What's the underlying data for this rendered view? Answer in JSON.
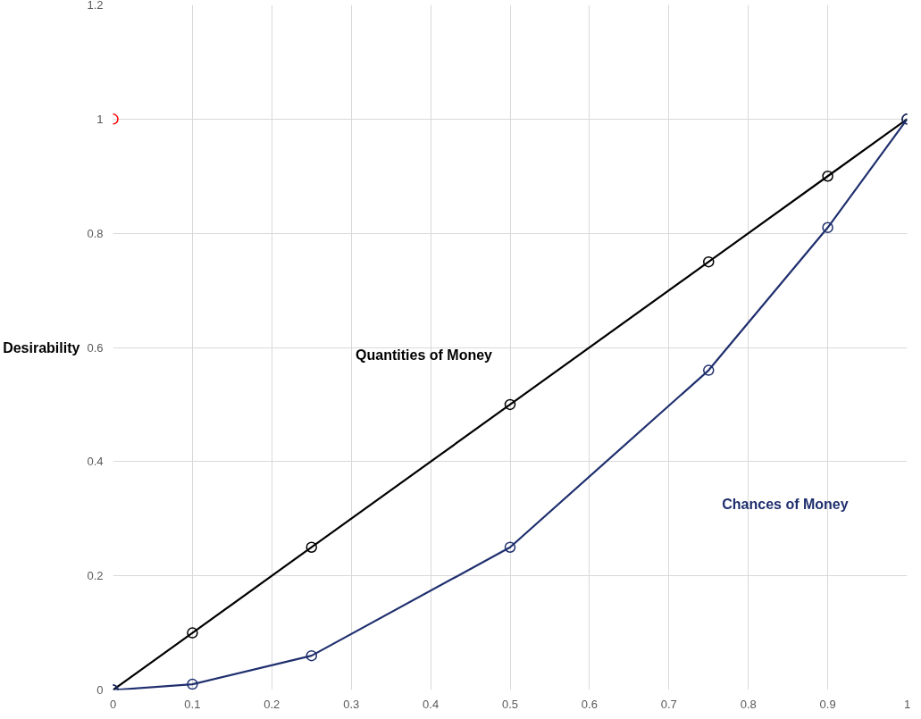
{
  "chart_data": {
    "type": "line",
    "ylabel": "Desirability",
    "x": [
      0,
      0.1,
      0.25,
      0.5,
      0.75,
      0.9,
      1
    ],
    "series": [
      {
        "name": "Quantities of Money",
        "color": "#000000",
        "values": [
          0,
          0.1,
          0.25,
          0.5,
          0.75,
          0.9,
          1
        ]
      },
      {
        "name": "Chances of Money",
        "color": "#1f2f6e",
        "values": [
          0,
          0.01,
          0.06,
          0.25,
          0.56,
          0.81,
          1
        ]
      },
      {
        "type": "scatter",
        "color": "#ff0000",
        "x": [
          0
        ],
        "values": [
          1
        ]
      }
    ],
    "xlim": [
      0,
      1
    ],
    "ylim": [
      0,
      1.2
    ],
    "xticks": [
      0,
      0.1,
      0.2,
      0.3,
      0.4,
      0.5,
      0.6,
      0.7,
      0.8,
      0.9,
      1
    ],
    "yticks": [
      0,
      0.2,
      0.4,
      0.6,
      0.8,
      1,
      1.2
    ],
    "grid": true,
    "marker": "circle",
    "line_style": "solid"
  }
}
